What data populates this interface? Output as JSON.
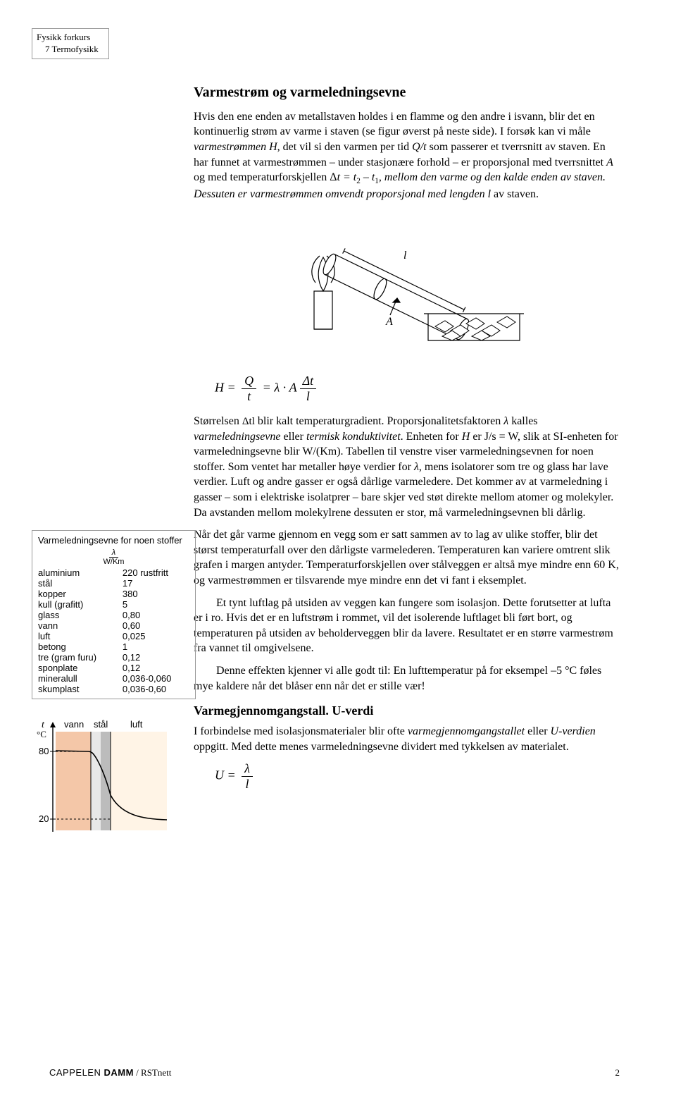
{
  "header": {
    "line1": "Fysikk forkurs",
    "line2": "7 Termofysikk"
  },
  "section_title": "Varmestrøm og varmeledningsevne",
  "para1_a": "Hvis den ene enden av metallstaven holdes i en flamme og den andre i isvann, blir det en kontinuerlig strøm av varme i staven (se figur øverst på neste side). I forsøk kan vi måle ",
  "para1_b": "varmestrømmen H",
  "para1_c": ", det vil si den varmen per tid ",
  "para1_d": "Q/t",
  "para1_e": " som passerer et tverrsnitt av staven. En har funnet at varmestrømmen – under stasjonære forhold – er proporsjonal med tverrsnittet ",
  "para1_f": "A",
  "para1_g": " og med temperaturforskjellen Δ",
  "para1_h": "t = t",
  "para1_i": " – t",
  "para1_j": ", mellom den varme og den kalde enden av staven. Dessuten er varmestrømmen omvendt proporsjonal med lengden ",
  "para1_k": "l",
  "para1_l": " av staven.",
  "sub2": "2",
  "sub1": "1",
  "figure1": {
    "label_l": "l",
    "label_A": "A"
  },
  "formula1": {
    "H": "H",
    "eq": " = ",
    "Q": "Q",
    "t": "t",
    "lam": "λ",
    "dot": " · ",
    "A": "A",
    "dt": "Δt",
    "l": "l"
  },
  "para2_a": "Størrelsen ",
  "para2_b": " blir kalt temperaturgradient. Proporsjonalitetsfaktoren ",
  "para2_c": "λ",
  "para2_d": " kalles ",
  "para2_e": "varmeledningsevne",
  "para2_f": " eller ",
  "para2_g": "termisk konduktivitet",
  "para2_h": ". Enheten for ",
  "para2_i": "H",
  "para2_j": " er J/s = W, slik at SI-enheten for varmeledningsevne blir W/(Km). Tabellen til venstre viser varmeledningsevnen for noen stoffer. Som ventet har metaller høye verdier for ",
  "para2_k": "λ",
  "para2_l": ", mens isolatorer som tre og glass har lave verdier. Luft og andre gasser er også dårlige varmeledere. Det kommer av at varmeledning i gasser – som i elektriske isolatprer – bare skjer ved støt direkte mellom atomer og molekyler. Da avstanden mellom molekylrene dessuten er stor, må varmeledningsevnen bli dårlig.",
  "para3": "Når det går varme gjennom en vegg som er satt sammen av to lag av ulike stoffer, blir det størst temperaturfall over den dårligste varmelederen. Temperaturen kan variere omtrent slik grafen i margen antyder. Temperaturforskjellen over stålveggen er altså mye mindre enn 60 K, og varmestrømmen er tilsvarende mye mindre enn det vi fant i eksemplet.",
  "para3b": "Et tynt luftlag på utsiden av veggen kan fungere som isolasjon. Dette forutsetter at lufta er i ro. Hvis det er en luftstrøm i rommet, vil det isolerende luftlaget bli ført bort, og temperaturen på utsiden av beholderveggen blir da lavere. Resultatet er en større varmestrøm fra vannet til omgivelsene.",
  "para3c": "Denne effekten kjenner vi alle godt til: En lufttemperatur på for eksempel –5 °C føles mye kaldere når det blåser enn når det er stille vær!",
  "subsection_title": "Varmegjennomgangstall. U-verdi",
  "para4_a": "I forbindelse med isolasjonsmaterialer blir ofte ",
  "para4_b": "varmegjen­nomgangstallet",
  "para4_c": " eller ",
  "para4_d": "U-verdien",
  "para4_e": " oppgitt. Med dette menes varme­ledningsevne dividert med tykkelsen av materialet.",
  "formula2": {
    "U": "U",
    "eq": " = ",
    "lam": "λ",
    "l": "l"
  },
  "table": {
    "title": "Varmeledningsevne for noen stoffer",
    "unit_sym": "λ",
    "unit_den": "W/Km",
    "rows": [
      {
        "m": "aluminium",
        "v": "220 rustfritt"
      },
      {
        "m": "stål",
        "v": "17"
      },
      {
        "m": "kopper",
        "v": "380"
      },
      {
        "m": "kull (grafitt)",
        "v": "5"
      },
      {
        "m": "glass",
        "v": "0,80"
      },
      {
        "m": "vann",
        "v": "0,60"
      },
      {
        "m": "luft",
        "v": "0,025"
      },
      {
        "m": "betong",
        "v": "1"
      },
      {
        "m": "tre (gram furu)",
        "v": "0,12"
      },
      {
        "m": "sponplate",
        "v": "0,12"
      },
      {
        "m": "mineralull",
        "v": "0,036-0,060"
      },
      {
        "m": "skumplast",
        "v": "0,036-0,60"
      }
    ]
  },
  "graph": {
    "ylabel_t": "t",
    "ylabel_unit": "°C",
    "y_hi": "80",
    "y_lo": "20",
    "l_vann": "vann",
    "l_stal": "stål",
    "l_luft": "luft",
    "colors": {
      "vann": "#f4c7a8",
      "stal_light": "#e8e8e8",
      "stal_dark": "#bcbcbc",
      "luft": "#fff4e6",
      "line": "#000000",
      "bg": "#ffffff"
    }
  },
  "footer": {
    "brand1": "CAPPELEN ",
    "brand2": "DAMM",
    "suffix": " / RSTnett",
    "page": "2"
  }
}
